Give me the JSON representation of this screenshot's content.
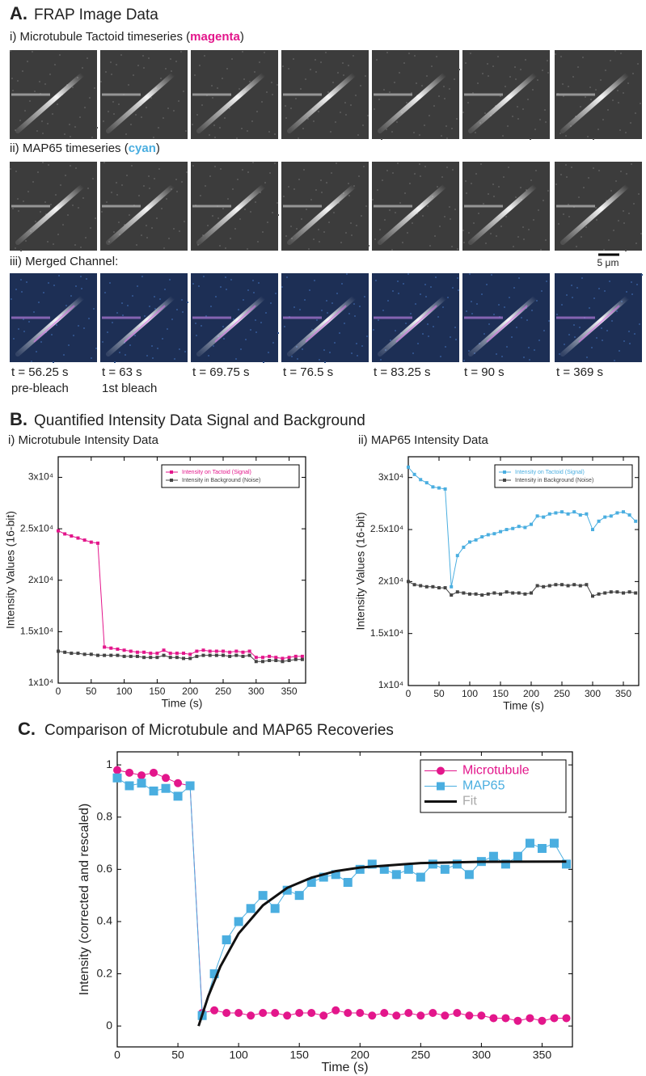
{
  "panel_a": {
    "label": "A.",
    "title": "FRAP Image Data",
    "row1": {
      "prefix": "i) Microtubule Tactoid timeseries (",
      "highlight": "magenta",
      "suffix": ")"
    },
    "row2": {
      "prefix": "ii) MAP65 timeseries (",
      "highlight": "cyan",
      "suffix": ")"
    },
    "row3": {
      "prefix": "iii) Merged Channel:"
    },
    "scale_bar": "5 μm",
    "times": [
      "t = 56.25 s",
      "t = 63 s",
      "t = 69.75 s",
      "t = 76.5 s",
      "t = 83.25 s",
      "t = 90 s",
      "t = 369 s"
    ],
    "notes": [
      "pre-bleach",
      "1st bleach"
    ]
  },
  "panel_b": {
    "label": "B.",
    "title": "Quantified Intensity Data Signal and Background"
  },
  "chart_data": [
    {
      "type": "line",
      "title": "i) Microtubule Intensity Data",
      "xlabel": "Time (s)",
      "ylabel": "Intensity Values (16-bit)",
      "xlim": [
        0,
        375
      ],
      "xticks": [
        0,
        50,
        100,
        150,
        200,
        250,
        300,
        350
      ],
      "ylim": [
        10000,
        32000
      ],
      "yticks": [
        {
          "value": 10000,
          "label": "1x10⁴"
        },
        {
          "value": 15000,
          "label": "1.5x10⁴"
        },
        {
          "value": 20000,
          "label": "2x10⁴"
        },
        {
          "value": 25000,
          "label": "2.5x10⁴"
        },
        {
          "value": 30000,
          "label": "3x10⁴"
        }
      ],
      "legend": "upper right",
      "x": [
        0,
        10,
        20,
        30,
        40,
        50,
        60,
        70,
        80,
        90,
        100,
        110,
        120,
        130,
        140,
        150,
        160,
        170,
        180,
        190,
        200,
        210,
        220,
        230,
        240,
        250,
        260,
        270,
        280,
        290,
        300,
        310,
        320,
        330,
        340,
        350,
        360,
        370
      ],
      "series": [
        {
          "name": "Intensity on Tactoid (Signal)",
          "color": "#e3168b",
          "marker": "square",
          "values": [
            24800,
            24500,
            24300,
            24100,
            23900,
            23700,
            23600,
            13500,
            13400,
            13300,
            13200,
            13100,
            13000,
            13000,
            12900,
            12900,
            13200,
            12900,
            12900,
            12900,
            12800,
            13100,
            13200,
            13100,
            13100,
            13100,
            13000,
            13100,
            13000,
            13100,
            12500,
            12500,
            12600,
            12500,
            12400,
            12500,
            12600,
            12600
          ]
        },
        {
          "name": "Intensity in Background (Noise)",
          "color": "#444444",
          "marker": "square",
          "values": [
            13100,
            13000,
            12900,
            12900,
            12800,
            12800,
            12700,
            12700,
            12700,
            12700,
            12600,
            12600,
            12600,
            12500,
            12500,
            12500,
            12700,
            12500,
            12500,
            12400,
            12400,
            12600,
            12700,
            12700,
            12700,
            12700,
            12600,
            12700,
            12600,
            12700,
            12100,
            12100,
            12200,
            12200,
            12100,
            12200,
            12300,
            12300
          ]
        }
      ]
    },
    {
      "type": "line",
      "title": "ii) MAP65 Intensity Data",
      "xlabel": "Time (s)",
      "ylabel": "Intensity Values (16-bit)",
      "xlim": [
        0,
        375
      ],
      "xticks": [
        0,
        50,
        100,
        150,
        200,
        250,
        300,
        350
      ],
      "ylim": [
        10000,
        32000
      ],
      "yticks": [
        {
          "value": 10000,
          "label": "1x10⁴"
        },
        {
          "value": 15000,
          "label": "1.5x10⁴"
        },
        {
          "value": 20000,
          "label": "2x10⁴"
        },
        {
          "value": 25000,
          "label": "2.5x10⁴"
        },
        {
          "value": 30000,
          "label": "3x10⁴"
        }
      ],
      "legend": "upper right",
      "x": [
        0,
        10,
        20,
        30,
        40,
        50,
        60,
        70,
        80,
        90,
        100,
        110,
        120,
        130,
        140,
        150,
        160,
        170,
        180,
        190,
        200,
        210,
        220,
        230,
        240,
        250,
        260,
        270,
        280,
        290,
        300,
        310,
        320,
        330,
        340,
        350,
        360,
        370
      ],
      "series": [
        {
          "name": "Intensity on Tactoid (Signal)",
          "color": "#4aaee0",
          "marker": "square",
          "values": [
            31000,
            30300,
            29800,
            29500,
            29100,
            29000,
            28900,
            19500,
            22500,
            23300,
            23800,
            24000,
            24300,
            24500,
            24600,
            24800,
            25000,
            25100,
            25300,
            25200,
            25500,
            26300,
            26200,
            26500,
            26600,
            26700,
            26500,
            26700,
            26400,
            26500,
            25000,
            25800,
            26200,
            26300,
            26600,
            26700,
            26400,
            25800
          ]
        },
        {
          "name": "Intensity in Background (Noise)",
          "color": "#444444",
          "marker": "square",
          "values": [
            20000,
            19700,
            19600,
            19500,
            19500,
            19400,
            19400,
            18700,
            19000,
            18900,
            18800,
            18800,
            18700,
            18800,
            18900,
            18800,
            19000,
            18900,
            18900,
            18800,
            18900,
            19600,
            19500,
            19600,
            19700,
            19700,
            19600,
            19700,
            19600,
            19700,
            18600,
            18800,
            18900,
            19000,
            19000,
            18900,
            19000,
            18900
          ]
        }
      ]
    },
    {
      "type": "line",
      "label": "C.",
      "title": "Comparison of Microtubule and MAP65 Recoveries",
      "xlabel": "Time (s)",
      "ylabel": "Intensity (corrected and rescaled)",
      "xlim": [
        0,
        375
      ],
      "xticks": [
        0,
        50,
        100,
        150,
        200,
        250,
        300,
        350
      ],
      "ylim": [
        -0.08,
        1.05
      ],
      "yticks": [
        0,
        0.2,
        0.4,
        0.6,
        0.8,
        1
      ],
      "legend": "upper right",
      "series": [
        {
          "name": "Microtubule",
          "color": "#e3168b",
          "marker": "circle",
          "x": [
            0,
            10,
            20,
            30,
            40,
            50,
            60,
            70,
            80,
            90,
            100,
            110,
            120,
            130,
            140,
            150,
            160,
            170,
            180,
            190,
            200,
            210,
            220,
            230,
            240,
            250,
            260,
            270,
            280,
            290,
            300,
            310,
            320,
            330,
            340,
            350,
            360,
            370
          ],
          "values": [
            0.98,
            0.97,
            0.96,
            0.97,
            0.95,
            0.93,
            0.92,
            0.05,
            0.06,
            0.05,
            0.05,
            0.04,
            0.05,
            0.05,
            0.04,
            0.05,
            0.05,
            0.04,
            0.06,
            0.05,
            0.05,
            0.04,
            0.05,
            0.04,
            0.05,
            0.04,
            0.05,
            0.04,
            0.05,
            0.04,
            0.04,
            0.03,
            0.03,
            0.02,
            0.03,
            0.02,
            0.03,
            0.03
          ]
        },
        {
          "name": "MAP65",
          "color": "#4aaee0",
          "marker": "square",
          "x": [
            0,
            10,
            20,
            30,
            40,
            50,
            60,
            70,
            80,
            90,
            100,
            110,
            120,
            130,
            140,
            150,
            160,
            170,
            180,
            190,
            200,
            210,
            220,
            230,
            240,
            250,
            260,
            270,
            280,
            290,
            300,
            310,
            320,
            330,
            340,
            350,
            360,
            370
          ],
          "values": [
            0.95,
            0.92,
            0.93,
            0.9,
            0.91,
            0.88,
            0.92,
            0.04,
            0.2,
            0.33,
            0.4,
            0.45,
            0.5,
            0.45,
            0.52,
            0.5,
            0.55,
            0.57,
            0.58,
            0.55,
            0.6,
            0.62,
            0.6,
            0.58,
            0.6,
            0.57,
            0.62,
            0.6,
            0.62,
            0.58,
            0.63,
            0.65,
            0.62,
            0.65,
            0.7,
            0.68,
            0.7,
            0.62
          ]
        },
        {
          "name": "Fit",
          "color": "#111111",
          "label_color": "#aaaaaa",
          "marker": "none",
          "x": [
            67,
            75,
            85,
            100,
            120,
            140,
            160,
            180,
            200,
            250,
            300,
            370
          ],
          "values": [
            0,
            0.114,
            0.228,
            0.354,
            0.462,
            0.529,
            0.568,
            0.593,
            0.607,
            0.624,
            0.629,
            0.63
          ]
        }
      ]
    }
  ]
}
